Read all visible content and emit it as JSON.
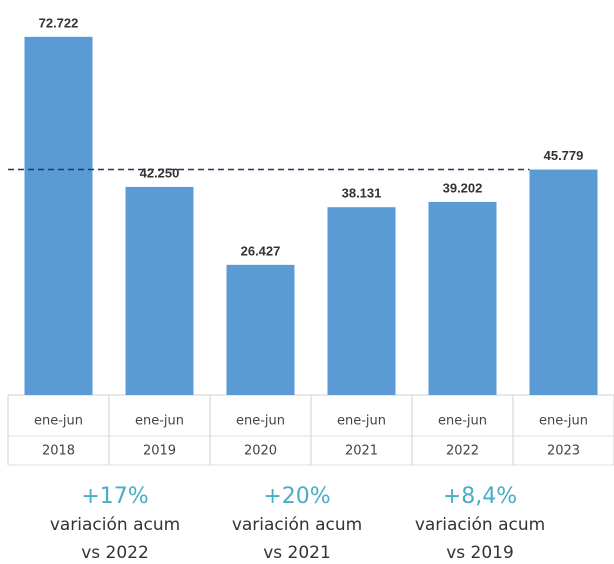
{
  "chart_data": {
    "type": "bar",
    "categories": [
      [
        "ene-jun",
        "2018"
      ],
      [
        "ene-jun",
        "2019"
      ],
      [
        "ene-jun",
        "2020"
      ],
      [
        "ene-jun",
        "2021"
      ],
      [
        "ene-jun",
        "2022"
      ],
      [
        "ene-jun",
        "2023"
      ]
    ],
    "values": [
      72722,
      42250,
      26427,
      38131,
      39202,
      45779
    ],
    "value_labels": [
      "72.722",
      "42.250",
      "26.427",
      "38.131",
      "39.202",
      "45.779"
    ],
    "color": "#5b9bd5",
    "ylim": [
      0,
      80000
    ],
    "annotations": [
      {
        "change": "+17%",
        "text": "variación acum",
        "compare": "vs 2022"
      },
      {
        "change": "+20%",
        "text": "variación acum",
        "compare": "vs 2021"
      },
      {
        "change": "+8,4%",
        "text": "variación acum",
        "compare": "vs 2019"
      }
    ]
  }
}
